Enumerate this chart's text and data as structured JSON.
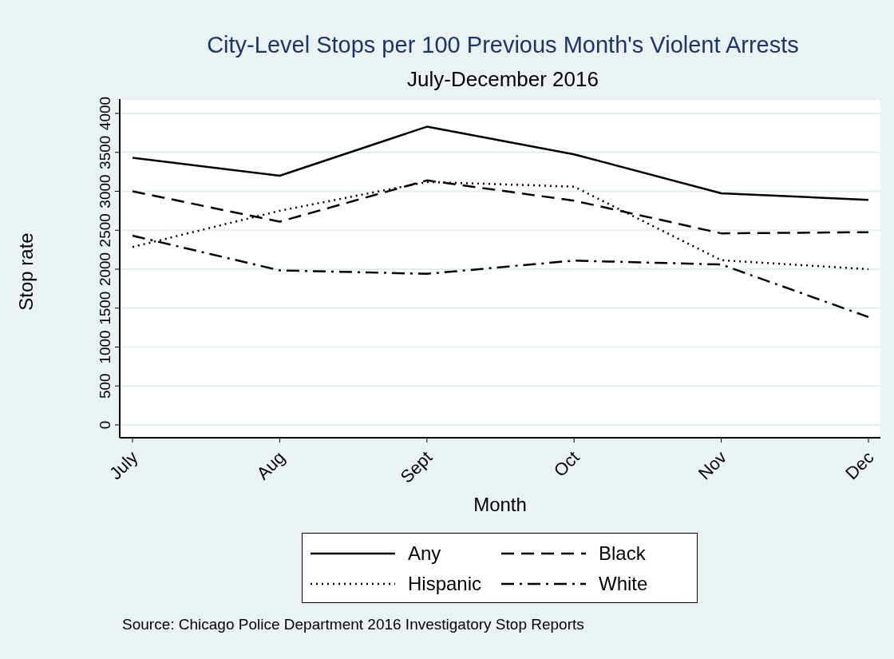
{
  "chart_data": {
    "type": "line",
    "title": "City-Level Stops per 100 Previous Month's Violent Arrests",
    "subtitle": "July-December 2016",
    "xlabel": "Month",
    "ylabel": "Stop rate",
    "categories": [
      "July",
      "Aug",
      "Sept",
      "Oct",
      "Nov",
      "Dec"
    ],
    "series": [
      {
        "name": "Any",
        "color": "#000000",
        "line_style": "solid",
        "values": [
          3430,
          3200,
          3830,
          3475,
          2975,
          2890
        ]
      },
      {
        "name": "Black",
        "color": "#000000",
        "line_style": "dashed",
        "values": [
          3000,
          2610,
          3140,
          2880,
          2460,
          2475
        ]
      },
      {
        "name": "Hispanic",
        "color": "#000000",
        "line_style": "dotted",
        "values": [
          2285,
          2750,
          3120,
          3060,
          2115,
          2000
        ]
      },
      {
        "name": "White",
        "color": "#000000",
        "line_style": "dashdot",
        "values": [
          2430,
          1985,
          1940,
          2110,
          2060,
          1385
        ]
      }
    ],
    "ylim": [
      -165,
      4185
    ],
    "yticks": [
      0,
      500,
      1000,
      1500,
      2000,
      2500,
      3000,
      3500,
      4000
    ],
    "grid": "y",
    "legend": "bottom",
    "marker": "none",
    "annotations": [
      "Source: Chicago Police Department 2016 Investigatory Stop Reports"
    ]
  }
}
